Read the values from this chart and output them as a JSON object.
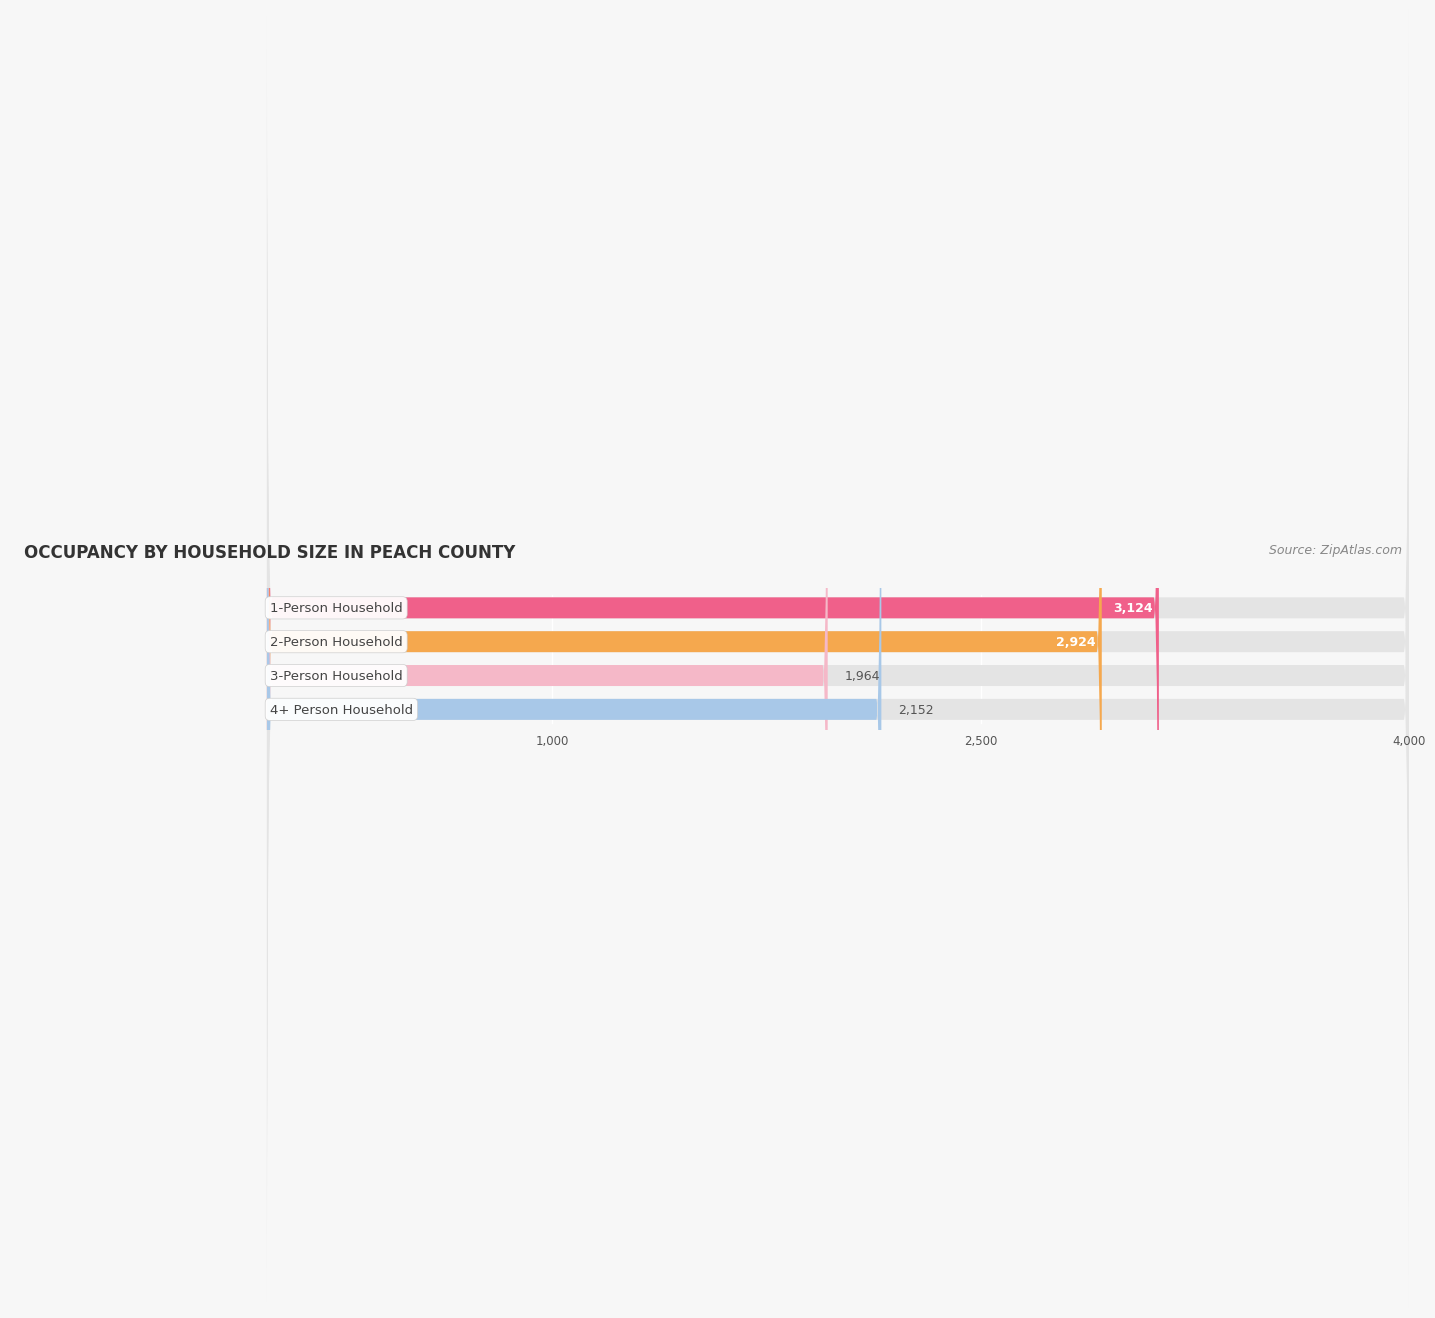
{
  "title": "OCCUPANCY BY HOUSEHOLD SIZE IN PEACH COUNTY",
  "source": "Source: ZipAtlas.com",
  "categories": [
    "1-Person Household",
    "2-Person Household",
    "3-Person Household",
    "4+ Person Household"
  ],
  "values": [
    3124,
    2924,
    1964,
    2152
  ],
  "bar_colors": [
    "#f0608a",
    "#f5a84e",
    "#f5b8c8",
    "#a8c8e8"
  ],
  "background_color": "#f7f7f7",
  "bar_background_color": "#e4e4e4",
  "xlim_min": -900,
  "xlim_max": 4000,
  "xticks": [
    1000,
    2500,
    4000
  ],
  "bar_height": 0.62,
  "title_fontsize": 12,
  "label_fontsize": 9.5,
  "value_fontsize": 9,
  "source_fontsize": 9
}
